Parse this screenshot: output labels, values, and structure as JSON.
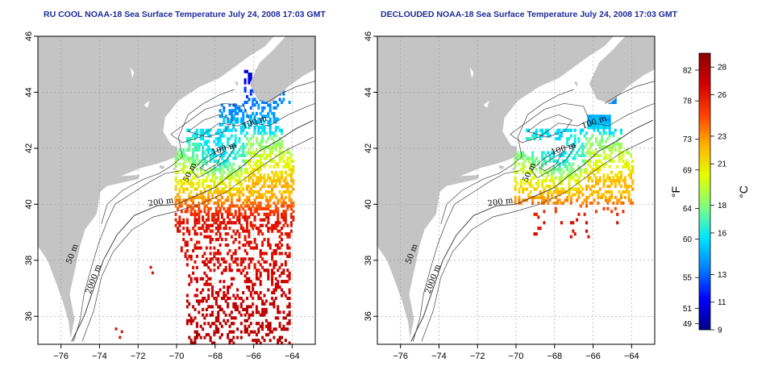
{
  "maps": [
    {
      "id": "left",
      "title": "RU COOL NOAA-18 Sea Surface Temperature July 24, 2008 17:03 GMT",
      "contour_labels": [
        {
          "text": "100 m",
          "lon": -65.9,
          "lat": 42.85,
          "rot": -20
        },
        {
          "text": "100 m",
          "lon": -67.5,
          "lat": 41.9,
          "rot": -18
        },
        {
          "text": "50 m",
          "lon": -69.2,
          "lat": 41.1,
          "rot": -65
        },
        {
          "text": "200 m",
          "lon": -70.8,
          "lat": 40.0,
          "rot": -8
        },
        {
          "text": "50 m",
          "lon": -75.3,
          "lat": 38.2,
          "rot": -70
        },
        {
          "text": "2000 m",
          "lon": -74.2,
          "lat": 37.3,
          "rot": -70
        }
      ]
    },
    {
      "id": "right",
      "title": "DECLOUDED NOAA-18 Sea Surface Temperature July 24, 2008 17:03 GMT",
      "contour_labels": [
        {
          "text": "100 m",
          "lon": -65.9,
          "lat": 42.85,
          "rot": -20
        },
        {
          "text": "100 m",
          "lon": -67.5,
          "lat": 41.9,
          "rot": -18
        },
        {
          "text": "50 m",
          "lon": -69.2,
          "lat": 41.1,
          "rot": -65
        },
        {
          "text": "200 m",
          "lon": -70.8,
          "lat": 40.0,
          "rot": -8
        },
        {
          "text": "50 m",
          "lon": -75.3,
          "lat": 38.2,
          "rot": -70
        },
        {
          "text": "2000 m",
          "lon": -74.2,
          "lat": 37.3,
          "rot": -70
        }
      ]
    }
  ],
  "axes": {
    "lon_range": [
      -77.2,
      -62.8
    ],
    "lat_range": [
      35.0,
      46.0
    ],
    "x_ticks": [
      -76,
      -74,
      -72,
      -70,
      -68,
      -66,
      -64
    ],
    "y_ticks": [
      36,
      38,
      40,
      42,
      44,
      46
    ],
    "grid": "dotted"
  },
  "colorbar": {
    "celsius_range": [
      9,
      29
    ],
    "fahrenheit_ticks": [
      82,
      78,
      73,
      69,
      64,
      60,
      55,
      51,
      49
    ],
    "celsius_ticks": [
      28,
      26,
      23,
      21,
      18,
      16,
      13,
      11,
      9
    ],
    "unit_f": "°F",
    "unit_c": "°C",
    "colormap": [
      "#00008c",
      "#0000ff",
      "#0080ff",
      "#00e5ff",
      "#7fff7f",
      "#e5ff00",
      "#ffb300",
      "#ff4000",
      "#d00000",
      "#8c0000"
    ]
  },
  "colors": {
    "land": "#c4c4c4",
    "ocean": "#ffffff",
    "title": "#1c2a9c",
    "contour": "#404040",
    "grid": "#9a9a9a"
  }
}
